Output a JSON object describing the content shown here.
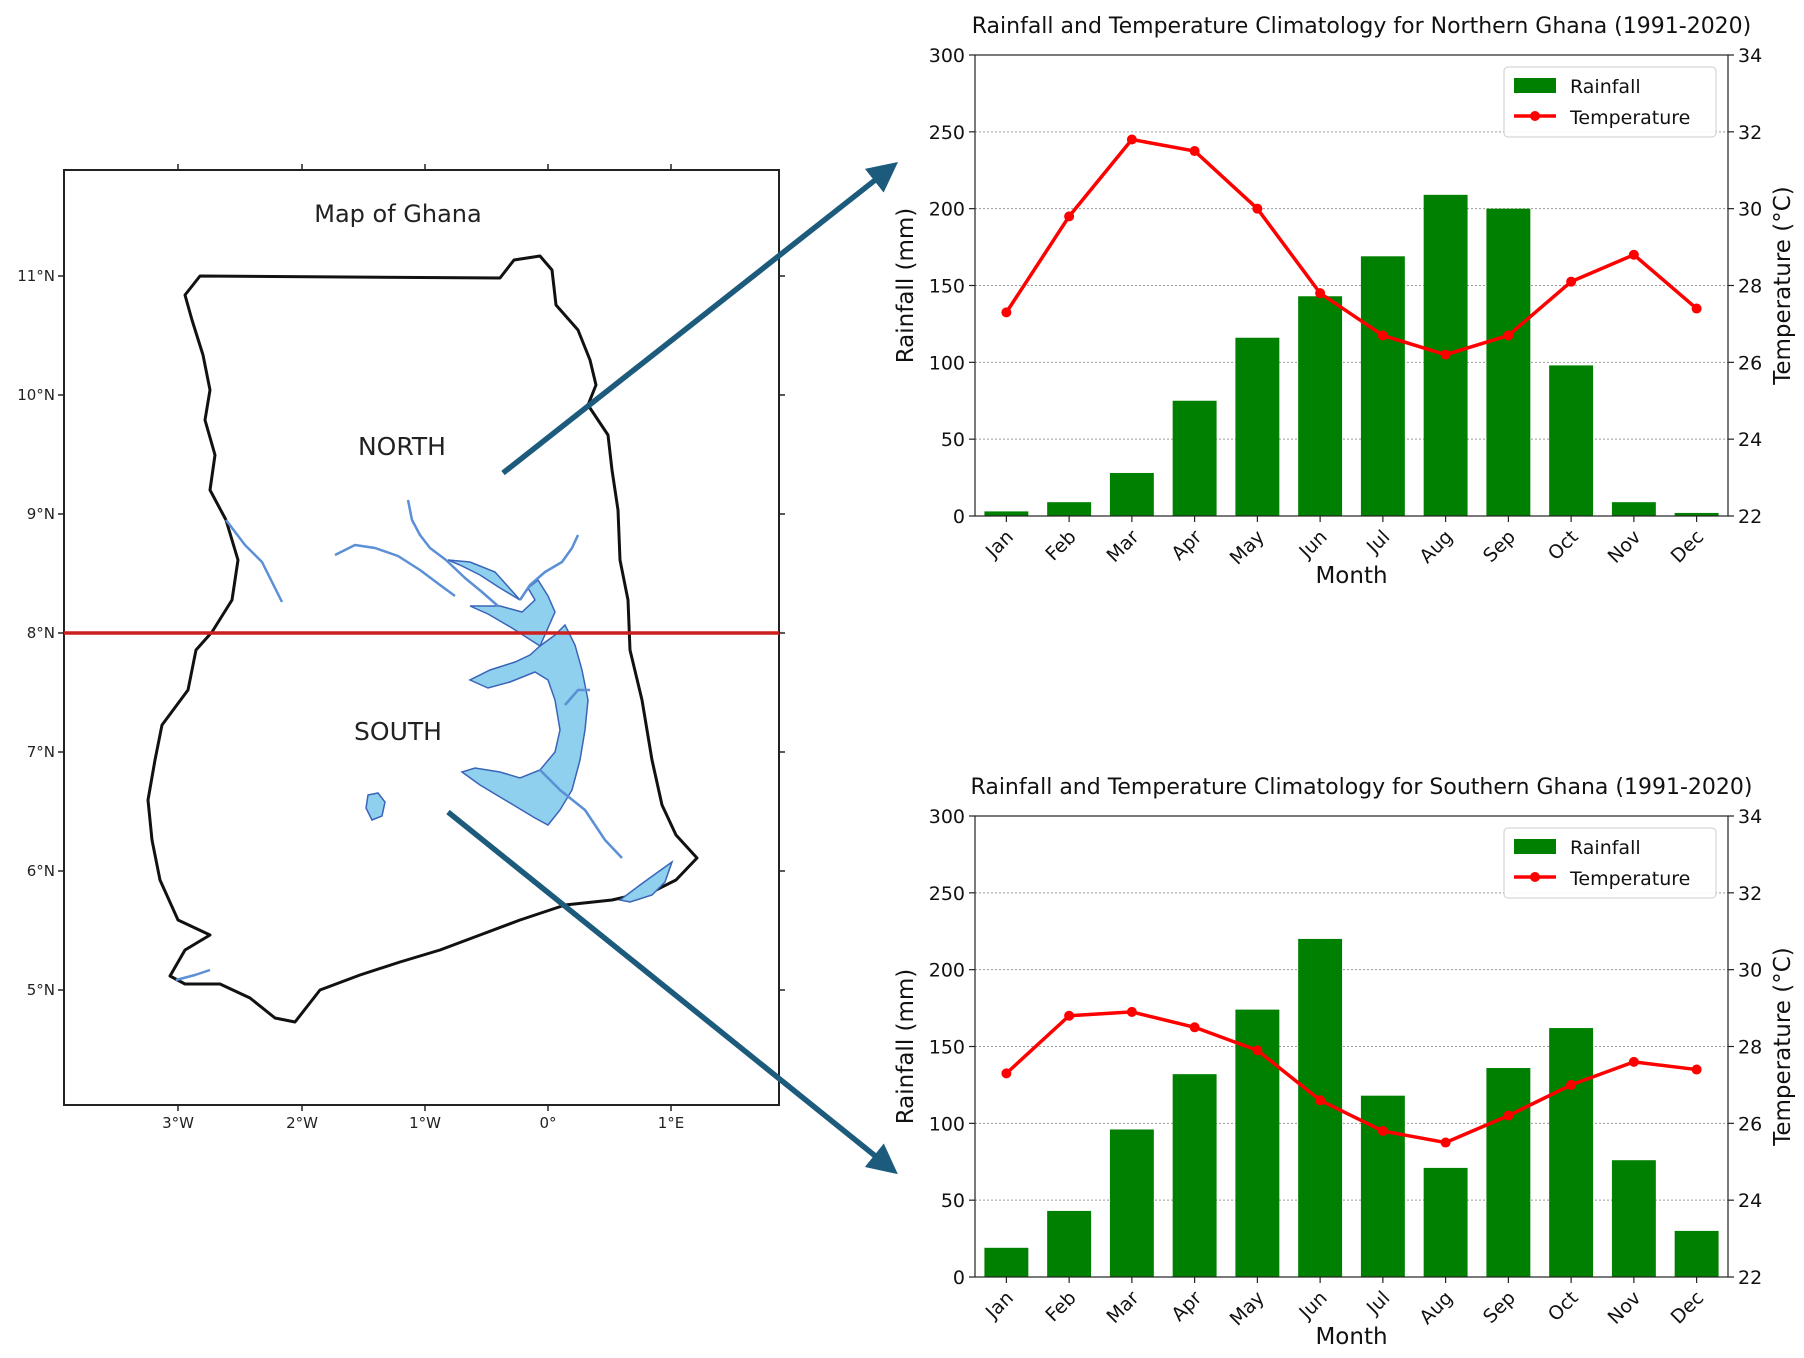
{
  "map": {
    "title": "Map of Ghana",
    "north_label": "NORTH",
    "south_label": "SOUTH",
    "lat_ticks": [
      "11°N",
      "10°N",
      "9°N",
      "8°N",
      "7°N",
      "6°N",
      "5°N"
    ],
    "lon_ticks": [
      "3°W",
      "2°W",
      "1°W",
      "0°",
      "1°E"
    ],
    "divider_latitude": "8°N",
    "colors": {
      "divider": "#cc1f1f",
      "water": "#8fd0ee",
      "outline": "#111111",
      "arrow": "#1d5b7c"
    }
  },
  "chart_data": [
    {
      "type": "bar",
      "title": "Rainfall and Temperature Climatology for Northern Ghana (1991-2020)",
      "xlabel": "Month",
      "ylabel": "Rainfall (mm)",
      "y2label": "Temperature (°C)",
      "categories": [
        "Jan",
        "Feb",
        "Mar",
        "Apr",
        "May",
        "Jun",
        "Jul",
        "Aug",
        "Sep",
        "Oct",
        "Nov",
        "Dec"
      ],
      "ylim": [
        0,
        300
      ],
      "y2lim": [
        22,
        34
      ],
      "yticks": [
        "0",
        "50",
        "100",
        "150",
        "200",
        "250",
        "300"
      ],
      "y2ticks": [
        "22",
        "24",
        "26",
        "28",
        "30",
        "32",
        "34"
      ],
      "grid": "horizontal dotted",
      "legend": "top-right",
      "series": [
        {
          "name": "Rainfall",
          "type": "bar",
          "axis": "left",
          "color": "#008000",
          "values": [
            3,
            9,
            28,
            75,
            116,
            143,
            169,
            209,
            200,
            98,
            9,
            2
          ]
        },
        {
          "name": "Temperature",
          "type": "line",
          "axis": "right",
          "color": "#ff0000",
          "values": [
            27.3,
            29.8,
            31.8,
            31.5,
            30.0,
            27.8,
            26.7,
            26.2,
            26.7,
            28.1,
            28.8,
            27.4
          ]
        }
      ]
    },
    {
      "type": "bar",
      "title": "Rainfall and Temperature Climatology for Southern Ghana (1991-2020)",
      "xlabel": "Month",
      "ylabel": "Rainfall (mm)",
      "y2label": "Temperature (°C)",
      "categories": [
        "Jan",
        "Feb",
        "Mar",
        "Apr",
        "May",
        "Jun",
        "Jul",
        "Aug",
        "Sep",
        "Oct",
        "Nov",
        "Dec"
      ],
      "ylim": [
        0,
        300
      ],
      "y2lim": [
        22,
        34
      ],
      "yticks": [
        "0",
        "50",
        "100",
        "150",
        "200",
        "250",
        "300"
      ],
      "y2ticks": [
        "22",
        "24",
        "26",
        "28",
        "30",
        "32",
        "34"
      ],
      "grid": "horizontal dotted",
      "legend": "top-right",
      "series": [
        {
          "name": "Rainfall",
          "type": "bar",
          "axis": "left",
          "color": "#008000",
          "values": [
            19,
            43,
            96,
            132,
            174,
            220,
            118,
            71,
            136,
            162,
            76,
            30
          ]
        },
        {
          "name": "Temperature",
          "type": "line",
          "axis": "right",
          "color": "#ff0000",
          "values": [
            27.3,
            28.8,
            28.9,
            28.5,
            27.9,
            26.6,
            25.8,
            25.5,
            26.2,
            27.0,
            27.6,
            27.4
          ]
        }
      ]
    }
  ]
}
